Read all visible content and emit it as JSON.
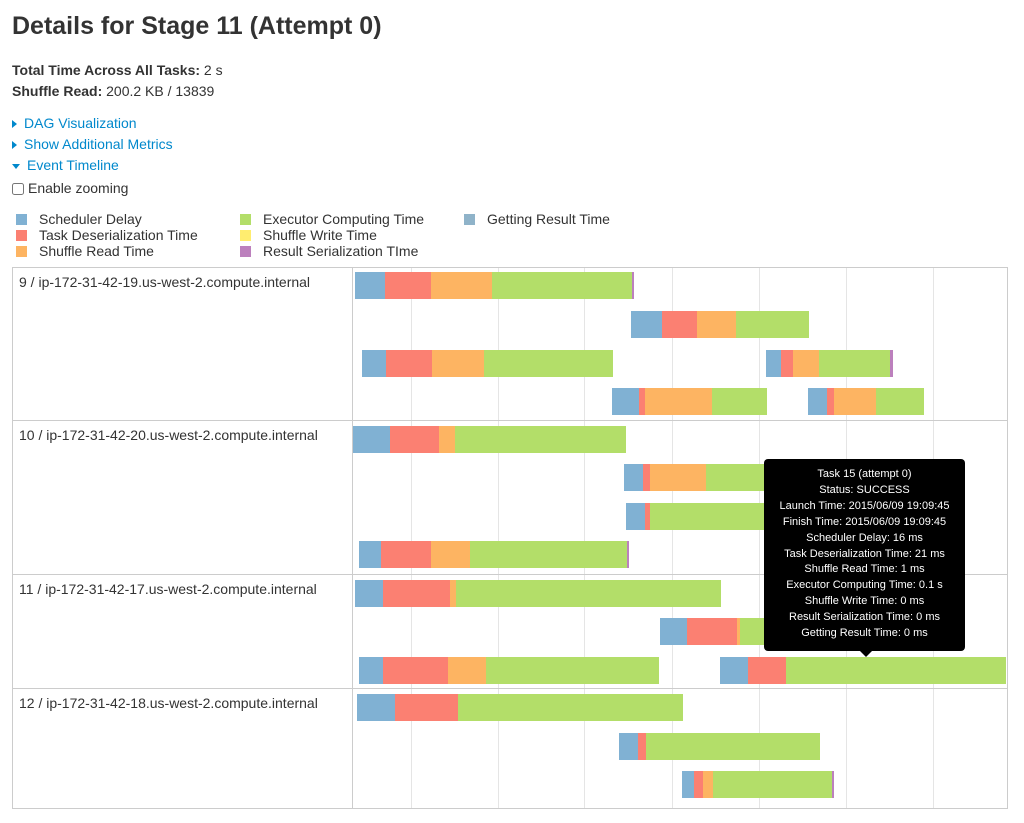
{
  "page_title": "Details for Stage 11 (Attempt 0)",
  "summary": {
    "total_time_label": "Total Time Across All Tasks:",
    "total_time_value": "2 s",
    "shuffle_read_label": "Shuffle Read:",
    "shuffle_read_value": "200.2 KB / 13839"
  },
  "links": {
    "dag": "DAG Visualization",
    "metrics": "Show Additional Metrics",
    "timeline": "Event Timeline"
  },
  "enable_zooming": {
    "label": "Enable zooming",
    "checked": false
  },
  "legend": [
    {
      "label": "Scheduler Delay",
      "color": "#80b1d3"
    },
    {
      "label": "Task Deserialization Time",
      "color": "#fb8072"
    },
    {
      "label": "Shuffle Read Time",
      "color": "#fdb462"
    },
    {
      "label": "Executor Computing Time",
      "color": "#b3de69"
    },
    {
      "label": "Shuffle Write Time",
      "color": "#ffed6f"
    },
    {
      "label": "Result Serialization TIme",
      "color": "#bc80bd"
    },
    {
      "label": "Getting Result Time",
      "color": "#8fb3c9"
    }
  ],
  "executors": [
    "9 / ip-172-31-42-19.us-west-2.compute.internal",
    "10 / ip-172-31-42-20.us-west-2.compute.internal",
    "11 / ip-172-31-42-17.us-west-2.compute.internal",
    "12 / ip-172-31-42-18.us-west-2.compute.internal"
  ],
  "tooltip": [
    "Task 15 (attempt 0)",
    "Status: SUCCESS",
    "Launch Time: 2015/06/09 19:09:45",
    "Finish Time: 2015/06/09 19:09:45",
    "Scheduler Delay: 16 ms",
    "Task Deserialization Time: 21 ms",
    "Shuffle Read Time: 1 ms",
    "Executor Computing Time: 0.1 s",
    "Shuffle Write Time: 0 ms",
    "Result Serialization Time: 0 ms",
    "Getting Result Time: 0 ms"
  ]
}
